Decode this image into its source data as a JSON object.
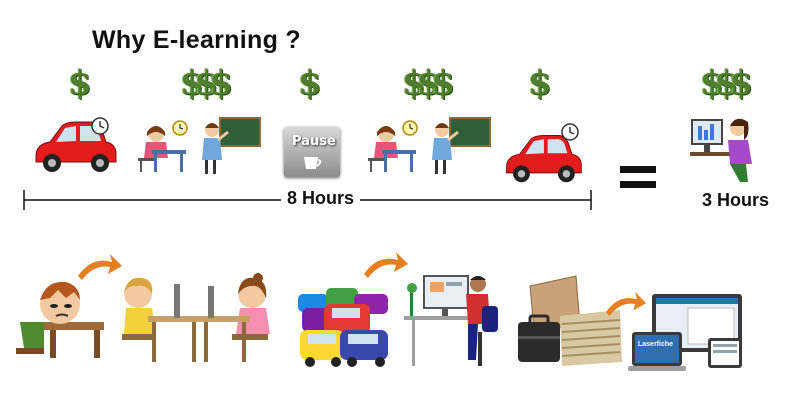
{
  "title": "Why E-learning ?",
  "dollar_glyph": "$",
  "classroom_label": "8 Hours",
  "elearning_label": "3 Hours",
  "pause_label": "Pause",
  "laptop_brand": "Laserfiche",
  "colors": {
    "money_green": "#4f7f2c",
    "car_red": "#e21b1b",
    "arrow_orange": "#e67e22",
    "text": "#111111"
  }
}
